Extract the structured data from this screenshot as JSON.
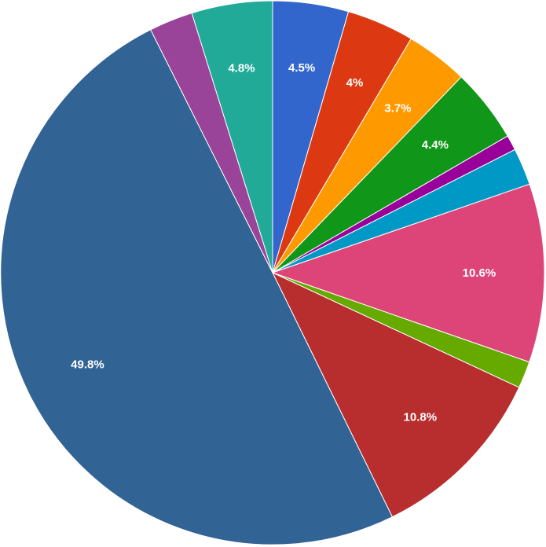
{
  "chart_data": {
    "type": "pie",
    "title": "",
    "start_angle_deg": 0,
    "direction": "clockwise",
    "slices": [
      {
        "value": 4.5,
        "label": "4.5%",
        "color": "#3366cc"
      },
      {
        "value": 4.0,
        "label": "4%",
        "color": "#dc3912"
      },
      {
        "value": 3.7,
        "label": "3.7%",
        "color": "#ff9900"
      },
      {
        "value": 4.4,
        "label": "4.4%",
        "color": "#109618"
      },
      {
        "value": 0.9,
        "label": "",
        "color": "#990099"
      },
      {
        "value": 2.2,
        "label": "",
        "color": "#0099c6"
      },
      {
        "value": 10.6,
        "label": "10.6%",
        "color": "#dd4477"
      },
      {
        "value": 1.6,
        "label": "",
        "color": "#66aa00"
      },
      {
        "value": 10.8,
        "label": "10.8%",
        "color": "#b82e2e"
      },
      {
        "value": 49.8,
        "label": "49.8%",
        "color": "#316395"
      },
      {
        "value": 2.6,
        "label": "",
        "color": "#994499"
      },
      {
        "value": 4.8,
        "label": "4.8%",
        "color": "#22aa99"
      }
    ]
  }
}
